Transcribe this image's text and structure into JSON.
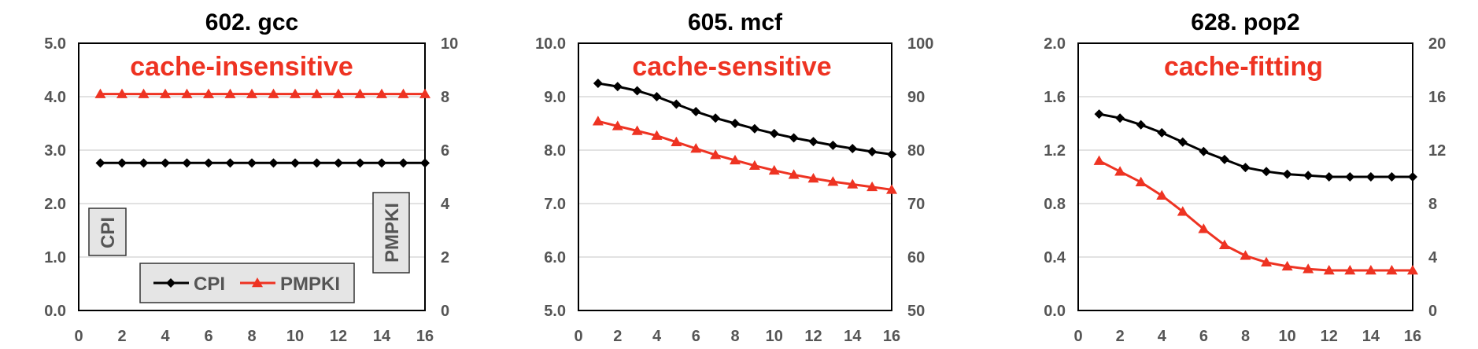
{
  "colors": {
    "cpi": "#000000",
    "pmpki": "#ee3322",
    "annotation": "#ee3322",
    "tick_text": "#555555",
    "grid": "#d9d9d9",
    "label_box_fill": "#e5e5e5"
  },
  "legend": {
    "cpi_label": "CPI",
    "pmpki_label": "PMPKI"
  },
  "axis_boxes": {
    "left": "CPI",
    "right": "PMPKI"
  },
  "chart_data": [
    {
      "type": "line",
      "title": "602. gcc",
      "annotation": "cache-insensitive",
      "x": [
        1,
        2,
        3,
        4,
        5,
        6,
        7,
        8,
        9,
        10,
        11,
        12,
        13,
        14,
        15,
        16
      ],
      "xlim": [
        0,
        16
      ],
      "xticks": [
        "0",
        "2",
        "4",
        "6",
        "8",
        "10",
        "12",
        "14",
        "16"
      ],
      "ylim": [
        0,
        5
      ],
      "yticks": [
        "0.0",
        "1.0",
        "2.0",
        "3.0",
        "4.0",
        "5.0"
      ],
      "y2lim": [
        0,
        10
      ],
      "y2ticks": [
        "0",
        "2",
        "4",
        "6",
        "8",
        "10"
      ],
      "grid": true,
      "series": [
        {
          "name": "CPI",
          "axis": "left",
          "marker": "diamond",
          "values": [
            2.76,
            2.76,
            2.76,
            2.76,
            2.76,
            2.76,
            2.76,
            2.76,
            2.76,
            2.76,
            2.76,
            2.76,
            2.76,
            2.76,
            2.76,
            2.76
          ]
        },
        {
          "name": "PMPKI",
          "axis": "right",
          "marker": "triangle",
          "values": [
            8.1,
            8.1,
            8.1,
            8.1,
            8.1,
            8.1,
            8.1,
            8.1,
            8.1,
            8.1,
            8.1,
            8.1,
            8.1,
            8.1,
            8.1,
            8.1
          ]
        }
      ]
    },
    {
      "type": "line",
      "title": "605. mcf",
      "annotation": "cache-sensitive",
      "x": [
        1,
        2,
        3,
        4,
        5,
        6,
        7,
        8,
        9,
        10,
        11,
        12,
        13,
        14,
        15,
        16
      ],
      "xlim": [
        0,
        16
      ],
      "xticks": [
        "0",
        "2",
        "4",
        "6",
        "8",
        "10",
        "12",
        "14",
        "16"
      ],
      "ylim": [
        5,
        10
      ],
      "yticks": [
        "5.0",
        "6.0",
        "7.0",
        "8.0",
        "9.0",
        "10.0"
      ],
      "y2lim": [
        50,
        100
      ],
      "y2ticks": [
        "50",
        "60",
        "70",
        "80",
        "90",
        "100"
      ],
      "grid": true,
      "series": [
        {
          "name": "CPI",
          "axis": "left",
          "marker": "diamond",
          "values": [
            9.25,
            9.19,
            9.11,
            9.0,
            8.86,
            8.72,
            8.6,
            8.5,
            8.4,
            8.31,
            8.23,
            8.16,
            8.09,
            8.03,
            7.97,
            7.92
          ]
        },
        {
          "name": "PMPKI",
          "axis": "right",
          "marker": "triangle",
          "values": [
            85.4,
            84.5,
            83.6,
            82.7,
            81.5,
            80.3,
            79.1,
            78.1,
            77.1,
            76.2,
            75.4,
            74.7,
            74.1,
            73.6,
            73.1,
            72.6
          ]
        }
      ]
    },
    {
      "type": "line",
      "title": "628. pop2",
      "annotation": "cache-fitting",
      "x": [
        1,
        2,
        3,
        4,
        5,
        6,
        7,
        8,
        9,
        10,
        11,
        12,
        13,
        14,
        15,
        16
      ],
      "xlim": [
        0,
        16
      ],
      "xticks": [
        "0",
        "2",
        "4",
        "6",
        "8",
        "10",
        "12",
        "14",
        "16"
      ],
      "ylim": [
        0,
        2
      ],
      "yticks": [
        "0.0",
        "0.4",
        "0.8",
        "1.2",
        "1.6",
        "2.0"
      ],
      "y2lim": [
        0,
        20
      ],
      "y2ticks": [
        "0",
        "4",
        "8",
        "12",
        "16",
        "20"
      ],
      "grid": true,
      "series": [
        {
          "name": "CPI",
          "axis": "left",
          "marker": "diamond",
          "values": [
            1.47,
            1.44,
            1.39,
            1.33,
            1.26,
            1.19,
            1.13,
            1.07,
            1.04,
            1.02,
            1.01,
            1.0,
            1.0,
            1.0,
            1.0,
            1.0
          ]
        },
        {
          "name": "PMPKI",
          "axis": "right",
          "marker": "triangle",
          "values": [
            11.2,
            10.4,
            9.6,
            8.6,
            7.4,
            6.1,
            4.9,
            4.1,
            3.6,
            3.3,
            3.1,
            3.0,
            3.0,
            3.0,
            3.0,
            3.0
          ]
        }
      ]
    }
  ]
}
